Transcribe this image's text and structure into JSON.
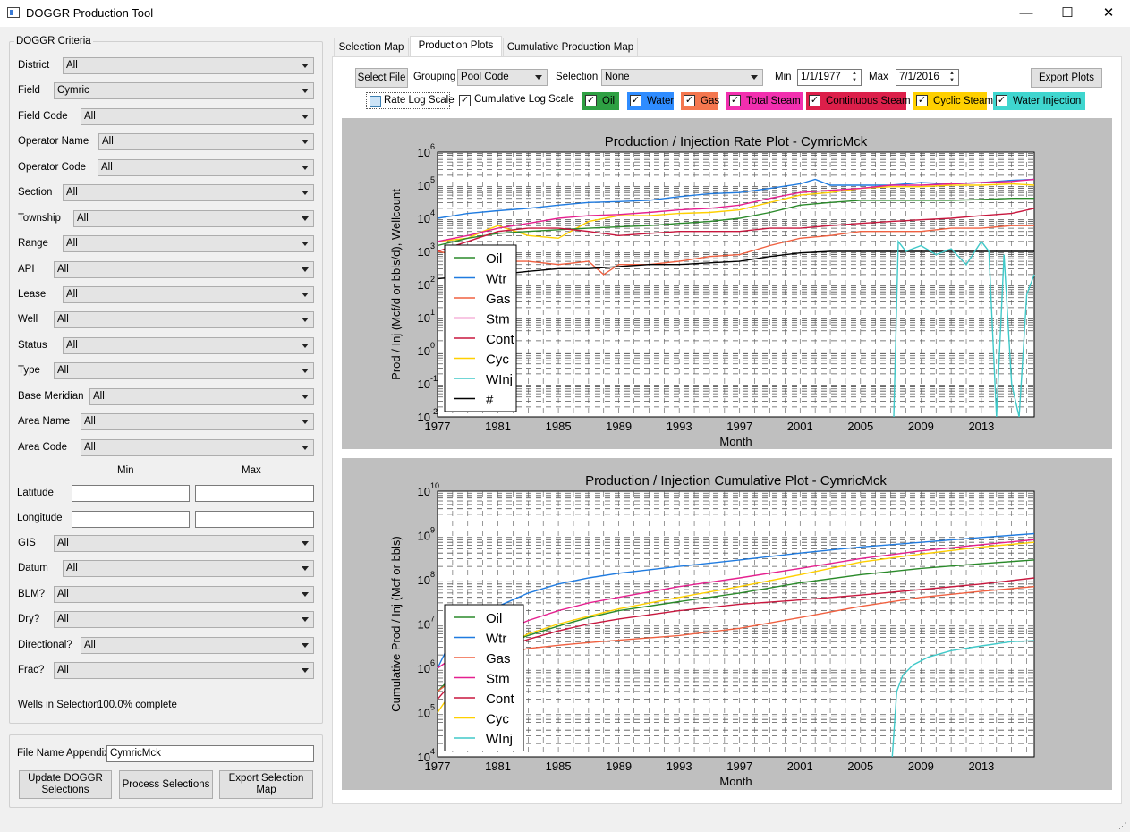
{
  "window": {
    "title": "DOGGR Production Tool",
    "minimize": "—",
    "maximize": "☐",
    "close": "✕"
  },
  "left": {
    "group_title": "DOGGR Criteria",
    "fields": [
      {
        "label": "District",
        "value": "All"
      },
      {
        "label": "Field",
        "value": "Cymric"
      },
      {
        "label": "Field Code",
        "value": "All"
      },
      {
        "label": "Operator Name",
        "value": "All"
      },
      {
        "label": "Operator Code",
        "value": "All"
      },
      {
        "label": "Section",
        "value": "All"
      },
      {
        "label": "Township",
        "value": "All"
      },
      {
        "label": "Range",
        "value": "All"
      },
      {
        "label": "API",
        "value": "All"
      },
      {
        "label": "Lease",
        "value": "All"
      },
      {
        "label": "Well",
        "value": "All"
      },
      {
        "label": "Status",
        "value": "All"
      },
      {
        "label": "Type",
        "value": "All"
      },
      {
        "label": "Base Meridian",
        "value": "All"
      },
      {
        "label": "Area  Name",
        "value": "All"
      },
      {
        "label": "Area  Code",
        "value": "All"
      }
    ],
    "min_label": "Min",
    "max_label": "Max",
    "latitude_label": "Latitude",
    "longitude_label": "Longitude",
    "latitude_min": "",
    "latitude_max": "",
    "longitude_min": "",
    "longitude_max": "",
    "fields2": [
      {
        "label": "GIS",
        "value": "All"
      },
      {
        "label": "Datum",
        "value": "All"
      },
      {
        "label": "BLM?",
        "value": "All"
      },
      {
        "label": "Dry?",
        "value": "All"
      },
      {
        "label": "Directional?",
        "value": "All"
      },
      {
        "label": "Frac?",
        "value": "All"
      }
    ],
    "wells_label": "Wells in Selection",
    "progress": "100.0% complete",
    "file_name_label": "File Name Appendix",
    "file_name_value": "CymricMck",
    "btn_update": "Update DOGGR Selections",
    "btn_process": "Process Selections",
    "btn_export_map": "Export Selection Map"
  },
  "tabs": [
    "Selection Map",
    "Production Plots",
    "Cumulative Production Map"
  ],
  "toolbar": {
    "select_file": "Select File",
    "grouping_label": "Grouping",
    "grouping_value": "Pool Code",
    "selection_label": "Selection",
    "selection_value": "None",
    "min_label": "Min",
    "min_value": "1/1/1977",
    "max_label": "Max",
    "max_value": "7/1/2016",
    "export_plots": "Export Plots",
    "rate_log": "Rate Log Scale",
    "cum_log": "Cumulative Log Scale"
  },
  "series_toggles": [
    {
      "label": "Oil",
      "color": "#2ea043"
    },
    {
      "label": "Water",
      "color": "#2f8cff"
    },
    {
      "label": "Gas",
      "color": "#f4774f"
    },
    {
      "label": "Total Steam",
      "color": "#f22faf"
    },
    {
      "label": "Continuous Steam",
      "color": "#dc1f4a"
    },
    {
      "label": "Cyclic Steam",
      "color": "#ffd000"
    },
    {
      "label": "Water Injection",
      "color": "#3fd6cf"
    }
  ],
  "chart_data": [
    {
      "type": "line",
      "title": "Production / Injection Rate Plot - CymricMck",
      "xlabel": "Month",
      "ylabel": "Prod / Inj (Mcf/d or bbls/d), Wellcount",
      "yscale": "log",
      "ylim": [
        0.01,
        1000000
      ],
      "xlim": [
        1977,
        2016.5
      ],
      "xticks": [
        "1977",
        "1981",
        "1985",
        "1989",
        "1993",
        "1997",
        "2001",
        "2005",
        "2009",
        "2013"
      ],
      "yticks": [
        "10",
        "10",
        "10",
        "10",
        "10",
        "10",
        "10",
        "10",
        "10"
      ],
      "yexp": [
        "-2",
        "-1",
        "0",
        "1",
        "2",
        "3",
        "4",
        "5",
        "6"
      ],
      "legend": [
        "Oil",
        "Wtr",
        "Gas",
        "Stm",
        "Cont",
        "Cyc",
        "WInj",
        "#"
      ],
      "series": [
        {
          "name": "Wtr",
          "color": "#1f7be0",
          "x": [
            1977,
            1979,
            1981,
            1983,
            1985,
            1987,
            1989,
            1991,
            1993,
            1995,
            1997,
            1999,
            2001,
            2002,
            2003,
            2005,
            2007,
            2009,
            2011,
            2013,
            2015,
            2016.5
          ],
          "y": [
            10000,
            14000,
            17000,
            20000,
            25000,
            30000,
            32000,
            35000,
            45000,
            55000,
            60000,
            80000,
            110000,
            150000,
            100000,
            100000,
            100000,
            120000,
            110000,
            120000,
            140000,
            150000
          ]
        },
        {
          "name": "Cyc",
          "color": "#ffd000",
          "x": [
            1977,
            1979,
            1980,
            1981,
            1983,
            1985,
            1987,
            1989,
            1991,
            1993,
            1995,
            1997,
            1999,
            2001,
            2003,
            2005,
            2007,
            2009,
            2011,
            2013,
            2015,
            2016.5
          ],
          "y": [
            2000,
            2500,
            4000,
            6000,
            3000,
            2500,
            8000,
            12000,
            12000,
            14000,
            15000,
            18000,
            30000,
            50000,
            60000,
            80000,
            90000,
            90000,
            100000,
            100000,
            110000,
            100000
          ]
        },
        {
          "name": "Stm",
          "color": "#e5208f",
          "x": [
            1977,
            1979,
            1981,
            1983,
            1985,
            1987,
            1989,
            1991,
            1993,
            1995,
            1997,
            1999,
            2001,
            2003,
            2005,
            2007,
            2009,
            2011,
            2013,
            2015,
            2016.5
          ],
          "y": [
            2000,
            3000,
            5000,
            7000,
            10000,
            12000,
            13000,
            15000,
            18000,
            20000,
            25000,
            40000,
            60000,
            70000,
            80000,
            100000,
            100000,
            110000,
            120000,
            130000,
            150000
          ]
        },
        {
          "name": "Oil",
          "color": "#2a8a2a",
          "x": [
            1977,
            1979,
            1981,
            1983,
            1985,
            1987,
            1989,
            1991,
            1993,
            1995,
            1997,
            1999,
            2001,
            2003,
            2005,
            2007,
            2009,
            2011,
            2013,
            2015,
            2016.5
          ],
          "y": [
            1500,
            2500,
            3500,
            4000,
            4500,
            5000,
            5500,
            6000,
            7000,
            8000,
            10000,
            15000,
            25000,
            30000,
            35000,
            35000,
            35000,
            35000,
            37000,
            40000,
            40000
          ]
        },
        {
          "name": "Cont",
          "color": "#c8173e",
          "x": [
            1977,
            1979,
            1981,
            1983,
            1985,
            1987,
            1989,
            1991,
            1993,
            1995,
            1997,
            1999,
            2001,
            2003,
            2005,
            2007,
            2009,
            2011,
            2013,
            2015,
            2016.5
          ],
          "y": [
            1000,
            2000,
            4000,
            5000,
            5000,
            4000,
            3000,
            3500,
            4000,
            4000,
            4000,
            5000,
            5000,
            6000,
            7000,
            8000,
            9000,
            10000,
            12000,
            14000,
            20000
          ]
        },
        {
          "name": "Gas",
          "color": "#f06040",
          "x": [
            1977,
            1979,
            1981,
            1983,
            1985,
            1987,
            1988,
            1989,
            1991,
            1993,
            1995,
            1997,
            1999,
            2001,
            2003,
            2005,
            2007,
            2009,
            2011,
            2013,
            2015,
            2016.5
          ],
          "y": [
            1000,
            700,
            500,
            500,
            400,
            500,
            200,
            400,
            400,
            500,
            700,
            800,
            1500,
            2500,
            3000,
            4000,
            4000,
            4000,
            5000,
            5000,
            6000,
            6000
          ]
        },
        {
          "name": "#",
          "color": "#000000",
          "x": [
            1977,
            1979,
            1981,
            1983,
            1985,
            1987,
            1989,
            1991,
            1993,
            1995,
            1997,
            1999,
            2001,
            2003,
            2005,
            2007,
            2009,
            2011,
            2013,
            2015,
            2016.5
          ],
          "y": [
            150,
            180,
            200,
            250,
            300,
            300,
            350,
            400,
            400,
            450,
            500,
            700,
            900,
            1000,
            1000,
            1000,
            1000,
            1000,
            1000,
            1000,
            1000
          ]
        },
        {
          "name": "WInj",
          "color": "#40c9c9",
          "x": [
            2007.2,
            2007.5,
            2008,
            2009,
            2010,
            2011,
            2012,
            2013,
            2013.5,
            2014,
            2014.5,
            2015,
            2015.5,
            2016,
            2016.5
          ],
          "y": [
            0.01,
            2000,
            1000,
            1500,
            800,
            1200,
            400,
            2000,
            1000,
            0.01,
            800,
            0.1,
            0.01,
            50,
            200
          ]
        }
      ]
    },
    {
      "type": "line",
      "title": "Production / Injection Cumulative Plot - CymricMck",
      "xlabel": "Month",
      "ylabel": "Cumulative Prod / Inj (Mcf or bbls)",
      "yscale": "log",
      "ylim": [
        10000,
        10000000000
      ],
      "xlim": [
        1977,
        2016.5
      ],
      "xticks": [
        "1977",
        "1981",
        "1985",
        "1989",
        "1993",
        "1997",
        "2001",
        "2005",
        "2009",
        "2013"
      ],
      "yticks": [
        "10",
        "10",
        "10",
        "10",
        "10",
        "10",
        "10"
      ],
      "yexp": [
        "4",
        "5",
        "6",
        "7",
        "8",
        "9",
        "10"
      ],
      "legend": [
        "Oil",
        "Wtr",
        "Gas",
        "Stm",
        "Cont",
        "Cyc",
        "WInj"
      ],
      "series": [
        {
          "name": "Wtr",
          "color": "#1f7be0",
          "x": [
            1977,
            1978,
            1979,
            1981,
            1983,
            1985,
            1987,
            1989,
            1993,
            1997,
            2001,
            2005,
            2009,
            2013,
            2016.5
          ],
          "y": [
            1000000,
            5000000,
            12000000,
            25000000,
            50000000,
            80000000,
            110000000,
            140000000,
            200000000,
            280000000,
            400000000,
            550000000,
            700000000,
            900000000,
            1100000000
          ]
        },
        {
          "name": "Stm",
          "color": "#e5208f",
          "x": [
            1977,
            1979,
            1981,
            1983,
            1985,
            1987,
            1989,
            1993,
            1997,
            2001,
            2005,
            2009,
            2013,
            2016.5
          ],
          "y": [
            1000000,
            3000000,
            6000000,
            12000000,
            20000000,
            30000000,
            40000000,
            70000000,
            110000000,
            180000000,
            300000000,
            450000000,
            620000000,
            800000000
          ]
        },
        {
          "name": "Cyc",
          "color": "#ffd000",
          "x": [
            1977,
            1979,
            1981,
            1983,
            1985,
            1987,
            1989,
            1993,
            1997,
            2001,
            2005,
            2009,
            2013,
            2016.5
          ],
          "y": [
            100000,
            1000000,
            2500000,
            6000000,
            10000000,
            15000000,
            22000000,
            40000000,
            70000000,
            130000000,
            250000000,
            380000000,
            550000000,
            700000000
          ]
        },
        {
          "name": "Oil",
          "color": "#2a8a2a",
          "x": [
            1977,
            1979,
            1981,
            1983,
            1985,
            1987,
            1989,
            1993,
            1997,
            2001,
            2005,
            2009,
            2013,
            2016.5
          ],
          "y": [
            300000,
            1500000,
            3000000,
            5500000,
            9000000,
            14000000,
            20000000,
            32000000,
            50000000,
            85000000,
            130000000,
            180000000,
            230000000,
            280000000
          ]
        },
        {
          "name": "Cont",
          "color": "#c8173e",
          "x": [
            1977,
            1979,
            1981,
            1983,
            1985,
            1987,
            1989,
            1993,
            1997,
            2001,
            2005,
            2009,
            2013,
            2016.5
          ],
          "y": [
            200000,
            1200000,
            2500000,
            4500000,
            7000000,
            10000000,
            13000000,
            20000000,
            28000000,
            35000000,
            45000000,
            60000000,
            80000000,
            110000000
          ]
        },
        {
          "name": "Gas",
          "color": "#f06040",
          "x": [
            1977,
            1979,
            1981,
            1983,
            1985,
            1987,
            1989,
            1993,
            1997,
            2001,
            2005,
            2009,
            2013,
            2016.5
          ],
          "y": [
            300000,
            1000000,
            2000000,
            2800000,
            3300000,
            3800000,
            4300000,
            5500000,
            8000000,
            14000000,
            25000000,
            40000000,
            55000000,
            70000000
          ]
        },
        {
          "name": "WInj",
          "color": "#40c9c9",
          "x": [
            2007.1,
            2007.4,
            2007.8,
            2008.5,
            2009.5,
            2011,
            2013,
            2015,
            2016.5
          ],
          "y": [
            10000,
            300000,
            700000,
            1200000,
            1800000,
            2500000,
            3200000,
            4000000,
            4200000
          ]
        }
      ]
    }
  ]
}
